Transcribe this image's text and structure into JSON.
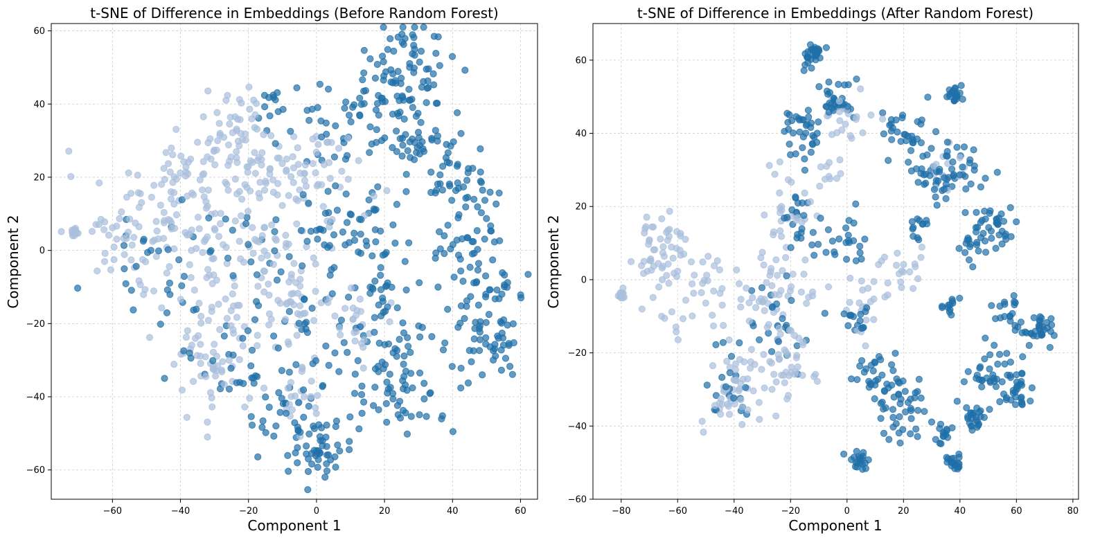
{
  "chart_data": [
    {
      "type": "scatter",
      "title": "t-SNE of Difference in Embeddings (Before Random Forest)",
      "xlabel": "Component 1",
      "ylabel": "Component 2",
      "xlim": [
        -78,
        65
      ],
      "ylim": [
        -68,
        62
      ],
      "xticks": [
        -60,
        -40,
        -20,
        0,
        20,
        40,
        60
      ],
      "yticks": [
        -60,
        -40,
        -20,
        0,
        20,
        40,
        60
      ],
      "xtick_labels": [
        "−60",
        "−40",
        "−20",
        "0",
        "20",
        "40",
        "60"
      ],
      "ytick_labels": [
        "−60",
        "−40",
        "−20",
        "0",
        "20",
        "40",
        "60"
      ],
      "grid": true,
      "colors": {
        "class_a": "#1f6fa8",
        "class_b": "#a9bfdc"
      },
      "series": [
        {
          "name": "class_a",
          "clusters": [
            {
              "cx": 25,
              "cy": 48,
              "spread": 8,
              "count": 90
            },
            {
              "cx": 32,
              "cy": 28,
              "spread": 6,
              "count": 45
            },
            {
              "cx": 43,
              "cy": 16,
              "spread": 5,
              "count": 45
            },
            {
              "cx": 49,
              "cy": -10,
              "spread": 6,
              "count": 45
            },
            {
              "cx": 51,
              "cy": -26,
              "spread": 5,
              "count": 45
            },
            {
              "cx": 25,
              "cy": -34,
              "spread": 8,
              "count": 75
            },
            {
              "cx": 1,
              "cy": -55,
              "spread": 4,
              "count": 45
            },
            {
              "cx": -8,
              "cy": -45,
              "spread": 5,
              "count": 30
            },
            {
              "cx": 20,
              "cy": -10,
              "spread": 4,
              "count": 25
            },
            {
              "cx": 15,
              "cy": 5,
              "spread": 6,
              "count": 30
            },
            {
              "cx": 5,
              "cy": 35,
              "spread": 8,
              "count": 40
            },
            {
              "cx": -12,
              "cy": 40,
              "spread": 3,
              "count": 12
            },
            {
              "cx": 2,
              "cy": 5,
              "spread": 4,
              "count": 20
            },
            {
              "cx": -25,
              "cy": -30,
              "spread": 8,
              "count": 30
            },
            {
              "cx": -45,
              "cy": -5,
              "spread": 10,
              "count": 30
            },
            {
              "cx": 0,
              "cy": -25,
              "spread": 10,
              "count": 40
            },
            {
              "cx": 38,
              "cy": 2,
              "spread": 3,
              "count": 12
            },
            {
              "cx": -15,
              "cy": 5,
              "spread": 8,
              "count": 20
            }
          ]
        },
        {
          "name": "class_b",
          "clusters": [
            {
              "cx": -40,
              "cy": 10,
              "spread": 11,
              "count": 110
            },
            {
              "cx": -30,
              "cy": 25,
              "spread": 6,
              "count": 40
            },
            {
              "cx": -22,
              "cy": 37,
              "spread": 4,
              "count": 25
            },
            {
              "cx": -10,
              "cy": 20,
              "spread": 7,
              "count": 50
            },
            {
              "cx": -20,
              "cy": -5,
              "spread": 9,
              "count": 60
            },
            {
              "cx": -30,
              "cy": -30,
              "spread": 7,
              "count": 55
            },
            {
              "cx": -5,
              "cy": -15,
              "spread": 9,
              "count": 50
            },
            {
              "cx": 0,
              "cy": 20,
              "spread": 8,
              "count": 35
            },
            {
              "cx": 12,
              "cy": -20,
              "spread": 6,
              "count": 20
            },
            {
              "cx": -71,
              "cy": 5,
              "spread": 0.6,
              "count": 14
            },
            {
              "cx": -60,
              "cy": 3,
              "spread": 4,
              "count": 18
            },
            {
              "cx": -5,
              "cy": -40,
              "spread": 5,
              "count": 20
            }
          ]
        }
      ]
    },
    {
      "type": "scatter",
      "title": "t-SNE of Difference in Embeddings (After Random Forest)",
      "xlabel": "Component 1",
      "ylabel": "Component 2",
      "xlim": [
        -90,
        82
      ],
      "ylim": [
        -60,
        70
      ],
      "xticks": [
        -80,
        -60,
        -40,
        -20,
        0,
        20,
        40,
        60,
        80
      ],
      "yticks": [
        -60,
        -40,
        -20,
        0,
        20,
        40,
        60
      ],
      "xtick_labels": [
        "−80",
        "−60",
        "−40",
        "−20",
        "0",
        "20",
        "40",
        "60",
        "80"
      ],
      "ytick_labels": [
        "−60",
        "−40",
        "−20",
        "0",
        "20",
        "40",
        "60"
      ],
      "grid": true,
      "colors": {
        "class_a": "#1f6fa8",
        "class_b": "#a9bfdc"
      },
      "series": [
        {
          "name": "class_a",
          "clusters": [
            {
              "cx": -12,
              "cy": 61,
              "spread": 1.5,
              "count": 30
            },
            {
              "cx": -3,
              "cy": 50,
              "spread": 3,
              "count": 30
            },
            {
              "cx": -15,
              "cy": 40,
              "spread": 4,
              "count": 35
            },
            {
              "cx": 20,
              "cy": 40,
              "spread": 4,
              "count": 30
            },
            {
              "cx": 38,
              "cy": 50,
              "spread": 1.2,
              "count": 20
            },
            {
              "cx": 38,
              "cy": 30,
              "spread": 5,
              "count": 40
            },
            {
              "cx": 30,
              "cy": 28,
              "spread": 3,
              "count": 20
            },
            {
              "cx": 52,
              "cy": 14,
              "spread": 3,
              "count": 30
            },
            {
              "cx": 45,
              "cy": 10,
              "spread": 3,
              "count": 20
            },
            {
              "cx": 68,
              "cy": -13,
              "spread": 2.5,
              "count": 30
            },
            {
              "cx": 58,
              "cy": -10,
              "spread": 3,
              "count": 20
            },
            {
              "cx": 60,
              "cy": -30,
              "spread": 3,
              "count": 30
            },
            {
              "cx": 50,
              "cy": -25,
              "spread": 4,
              "count": 30
            },
            {
              "cx": 44,
              "cy": -38,
              "spread": 2.5,
              "count": 25
            },
            {
              "cx": 38,
              "cy": -50,
              "spread": 1.5,
              "count": 20
            },
            {
              "cx": 34,
              "cy": -42,
              "spread": 2,
              "count": 15
            },
            {
              "cx": 20,
              "cy": -35,
              "spread": 5,
              "count": 40
            },
            {
              "cx": 10,
              "cy": -25,
              "spread": 4,
              "count": 30
            },
            {
              "cx": 5,
              "cy": -50,
              "spread": 2,
              "count": 20
            },
            {
              "cx": -15,
              "cy": 15,
              "spread": 5,
              "count": 25
            },
            {
              "cx": 0,
              "cy": 12,
              "spread": 4,
              "count": 20
            },
            {
              "cx": -25,
              "cy": -10,
              "spread": 6,
              "count": 25
            },
            {
              "cx": -40,
              "cy": -30,
              "spread": 5,
              "count": 20
            },
            {
              "cx": 25,
              "cy": 15,
              "spread": 2,
              "count": 12
            },
            {
              "cx": 37,
              "cy": -7,
              "spread": 1.2,
              "count": 12
            },
            {
              "cx": 5,
              "cy": -10,
              "spread": 3,
              "count": 15
            }
          ]
        },
        {
          "name": "class_b",
          "clusters": [
            {
              "cx": -65,
              "cy": 8,
              "spread": 5,
              "count": 45
            },
            {
              "cx": -80,
              "cy": -4,
              "spread": 0.6,
              "count": 14
            },
            {
              "cx": -55,
              "cy": -3,
              "spread": 7,
              "count": 40
            },
            {
              "cx": -40,
              "cy": -30,
              "spread": 5,
              "count": 55
            },
            {
              "cx": -25,
              "cy": -5,
              "spread": 7,
              "count": 60
            },
            {
              "cx": -20,
              "cy": -25,
              "spread": 5,
              "count": 30
            },
            {
              "cx": -20,
              "cy": 20,
              "spread": 5,
              "count": 25
            },
            {
              "cx": 0,
              "cy": 45,
              "spread": 5,
              "count": 25
            },
            {
              "cx": 20,
              "cy": 2,
              "spread": 4,
              "count": 20
            },
            {
              "cx": 35,
              "cy": 30,
              "spread": 4,
              "count": 15
            },
            {
              "cx": 5,
              "cy": -5,
              "spread": 5,
              "count": 20
            },
            {
              "cx": -5,
              "cy": 28,
              "spread": 3,
              "count": 10
            }
          ]
        }
      ]
    }
  ]
}
